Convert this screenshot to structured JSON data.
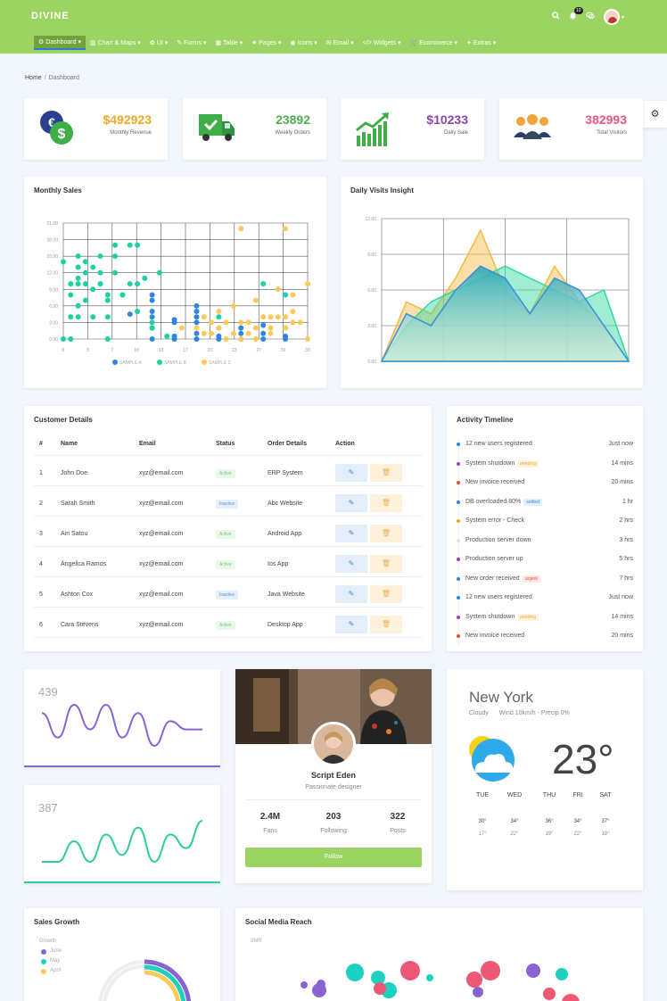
{
  "app": {
    "brand": "DIVINE",
    "notification_count": "10"
  },
  "nav": [
    {
      "label": "Dashboard",
      "icon": "gauge-icon",
      "active": true
    },
    {
      "label": "Chart & Maps",
      "icon": "bar-chart-icon"
    },
    {
      "label": "UI",
      "icon": "atom-icon"
    },
    {
      "label": "Forms",
      "icon": "edit-icon"
    },
    {
      "label": "Table",
      "icon": "table-icon"
    },
    {
      "label": "Pages",
      "icon": "star-icon"
    },
    {
      "label": "Icons",
      "icon": "icons-icon"
    },
    {
      "label": "Email",
      "icon": "envelope-icon"
    },
    {
      "label": "Widgets",
      "icon": "code-icon"
    },
    {
      "label": "Ecommerce",
      "icon": "cart-icon"
    },
    {
      "label": "Extras",
      "icon": "wrench-icon"
    }
  ],
  "breadcrumb": {
    "home": "Home",
    "separator": "/",
    "current": "Dashboard"
  },
  "stats": [
    {
      "value": "$492923",
      "label": "Monthly Revenue",
      "color": "#f5a623",
      "icon": "dollar-coins-icon"
    },
    {
      "value": "23892",
      "label": "Weekly Orders",
      "color": "#4caf50",
      "icon": "delivery-truck-icon"
    },
    {
      "value": "$10233",
      "label": "Daily Sale",
      "color": "#8e44ad",
      "icon": "growth-chart-icon"
    },
    {
      "value": "382993",
      "label": "Total Visitors",
      "color": "#e8577d",
      "icon": "people-group-icon"
    }
  ],
  "monthly_sales": {
    "title": "Monthly Sales"
  },
  "daily_visits": {
    "title": "Daily Visits Insight"
  },
  "chart_data": [
    {
      "type": "scatter",
      "title": "Monthly Sales",
      "xlim": [
        0,
        33
      ],
      "ylim": [
        0,
        21
      ],
      "x_ticks": [
        "0",
        "3",
        "7",
        "10",
        "13",
        "17",
        "20",
        "23",
        "27",
        "30",
        "33"
      ],
      "y_ticks": [
        "0.00",
        "3.00",
        "6.00",
        "9.00",
        "12.00",
        "15.00",
        "18.00",
        "21.00"
      ],
      "grid": true,
      "legend_position": "bottom",
      "series": [
        {
          "name": "SAMPLE A",
          "color": "#2e86de",
          "points": [
            [
              12,
              8
            ],
            [
              12,
              7
            ],
            [
              12,
              5
            ],
            [
              12,
              4
            ],
            [
              12,
              2
            ],
            [
              12,
              0
            ],
            [
              15,
              3.5
            ],
            [
              15,
              3
            ],
            [
              15,
              0.5
            ],
            [
              15,
              0
            ],
            [
              18,
              6
            ],
            [
              18,
              4
            ],
            [
              18,
              3
            ],
            [
              18,
              1
            ],
            [
              18,
              0
            ],
            [
              21,
              2
            ],
            [
              21,
              0.5
            ],
            [
              21,
              0
            ],
            [
              24,
              2
            ],
            [
              24,
              1
            ],
            [
              24,
              0
            ],
            [
              27,
              2.5
            ],
            [
              27,
              1
            ],
            [
              27,
              0
            ],
            [
              30,
              2
            ],
            [
              30,
              0.5
            ],
            [
              30,
              0
            ],
            [
              9,
              4.5
            ],
            [
              18,
              5
            ]
          ]
        },
        {
          "name": "SAMPLE B",
          "color": "#1dd1a1",
          "points": [
            [
              0,
              14
            ],
            [
              1,
              10
            ],
            [
              1,
              8
            ],
            [
              1,
              4
            ],
            [
              2,
              15
            ],
            [
              2,
              13
            ],
            [
              2,
              11
            ],
            [
              2,
              10
            ],
            [
              2,
              6
            ],
            [
              2,
              4
            ],
            [
              3,
              14
            ],
            [
              3,
              12
            ],
            [
              3,
              10
            ],
            [
              3,
              7
            ],
            [
              4,
              13
            ],
            [
              4,
              9
            ],
            [
              5,
              12
            ],
            [
              4,
              4
            ],
            [
              5,
              15
            ],
            [
              5,
              10
            ],
            [
              6,
              8
            ],
            [
              6,
              7
            ],
            [
              7,
              17
            ],
            [
              7,
              15
            ],
            [
              7,
              12
            ],
            [
              8,
              8
            ],
            [
              9,
              17
            ],
            [
              9,
              10
            ],
            [
              10,
              10
            ],
            [
              10,
              5
            ],
            [
              11,
              11
            ],
            [
              12,
              3
            ],
            [
              13,
              12
            ],
            [
              6,
              4
            ],
            [
              0,
              0
            ],
            [
              1,
              0
            ],
            [
              6,
              0
            ],
            [
              10,
              17
            ],
            [
              12,
              2
            ],
            [
              27,
              10
            ],
            [
              30,
              8
            ],
            [
              21,
              4
            ],
            [
              14,
              0.5
            ]
          ]
        },
        {
          "name": "SAMPLE C",
          "color": "#feca57",
          "points": [
            [
              24,
              20
            ],
            [
              30,
              20
            ],
            [
              33,
              10
            ],
            [
              31,
              8
            ],
            [
              29,
              9
            ],
            [
              26,
              7
            ],
            [
              23,
              6
            ],
            [
              21,
              5
            ],
            [
              19,
              4
            ],
            [
              20,
              3
            ],
            [
              22,
              3
            ],
            [
              24,
              3
            ],
            [
              25,
              3
            ],
            [
              26,
              2
            ],
            [
              27,
              4
            ],
            [
              28,
              4
            ],
            [
              29,
              4
            ],
            [
              30,
              4
            ],
            [
              31,
              3
            ],
            [
              32,
              3
            ],
            [
              16,
              2
            ],
            [
              18,
              2
            ],
            [
              19,
              1
            ],
            [
              20,
              1
            ],
            [
              22,
              0
            ],
            [
              24,
              0
            ],
            [
              26,
              0
            ],
            [
              28,
              1
            ],
            [
              30,
              2
            ],
            [
              33,
              0
            ],
            [
              31,
              5
            ],
            [
              28,
              2
            ],
            [
              25,
              1
            ],
            [
              21,
              2
            ],
            [
              23,
              1
            ]
          ]
        }
      ]
    },
    {
      "type": "area",
      "title": "Daily Visits Insight",
      "ylim": [
        0,
        12
      ],
      "y_ticks": [
        "0.00",
        "3.00",
        "6.00",
        "9.00",
        "12.00"
      ],
      "grid": true,
      "series": [
        {
          "color": "#f5b841",
          "values": [
            0,
            5,
            4,
            7,
            11,
            6,
            4,
            8,
            5,
            3,
            0
          ]
        },
        {
          "color": "#2ed8a0",
          "values": [
            0,
            3,
            5,
            6,
            7,
            8,
            7,
            6,
            5,
            6,
            0
          ]
        },
        {
          "color": "#3a8fd9",
          "values": [
            0,
            4,
            3,
            6,
            8,
            7,
            4,
            7,
            6,
            3,
            0
          ]
        }
      ]
    },
    {
      "type": "line",
      "series": [
        {
          "name": "439",
          "color": "#8a63d2",
          "values": [
            6,
            3,
            7,
            4,
            7,
            3,
            6,
            2,
            5,
            4,
            4
          ]
        }
      ]
    },
    {
      "type": "line",
      "series": [
        {
          "name": "387",
          "color": "#2ecc9a",
          "values": [
            2,
            2,
            5,
            2,
            6,
            3,
            7,
            2,
            6,
            4,
            8
          ]
        }
      ]
    },
    {
      "type": "pie",
      "title": "Sales Growth",
      "series": [
        {
          "name": "June",
          "color": "#8a63d2"
        },
        {
          "name": "May",
          "color": "#1dd1c1"
        },
        {
          "name": "April",
          "color": "#feca57"
        }
      ]
    },
    {
      "type": "scatter",
      "title": "Social Media Reach",
      "y_ticks": [
        "3MR"
      ]
    }
  ],
  "customers": {
    "title": "Customer Details",
    "headers": [
      "#",
      "Name",
      "Email",
      "Status",
      "Order Details",
      "Action"
    ],
    "rows": [
      {
        "id": "1",
        "name": "John Doe",
        "email": "xyz@email.com",
        "status": "Active",
        "order": "ERP System"
      },
      {
        "id": "2",
        "name": "Sarah Smith",
        "email": "xyz@email.com",
        "status": "Inactive",
        "order": "Abc Website"
      },
      {
        "id": "3",
        "name": "Airi Satou",
        "email": "xyz@email.com",
        "status": "Active",
        "order": "Android App"
      },
      {
        "id": "4",
        "name": "Angelica Ramos",
        "email": "xyz@email.com",
        "status": "Active",
        "order": "Ios App"
      },
      {
        "id": "5",
        "name": "Ashton Cox",
        "email": "xyz@email.com",
        "status": "Inactive",
        "order": "Java Website"
      },
      {
        "id": "6",
        "name": "Cara Stevens",
        "email": "xyz@email.com",
        "status": "Active",
        "order": "Desktop App"
      }
    ]
  },
  "timeline": {
    "title": "Activity Timeline",
    "items": [
      {
        "text": "12 new users registered",
        "badge": "",
        "time": "Just now",
        "color": "#2e86de"
      },
      {
        "text": "System shutdown",
        "badge": "pending",
        "badge_color": "#f5a623",
        "time": "14 mins",
        "color": "#8e44ad"
      },
      {
        "text": "New invoice received",
        "badge": "",
        "time": "20 mins",
        "color": "#e74c3c"
      },
      {
        "text": "DB overloaded 80%",
        "badge": "settled",
        "badge_color": "#3a86d6",
        "time": "1 hr",
        "color": "#2e86de"
      },
      {
        "text": "System error - Check",
        "badge": "",
        "time": "2 hrs",
        "color": "#f5a623"
      },
      {
        "text": "Production server down",
        "badge": "",
        "time": "3 hrs",
        "color": "#e0e0e0"
      },
      {
        "text": "Production server up",
        "badge": "",
        "time": "5 hrs",
        "color": "#8e44ad"
      },
      {
        "text": "New order received",
        "badge": "urgent",
        "badge_color": "#e74c3c",
        "time": "7 hrs",
        "color": "#2e86de"
      },
      {
        "text": "12 new users registered",
        "badge": "",
        "time": "Just now",
        "color": "#2e86de"
      },
      {
        "text": "System shutdown",
        "badge": "pending",
        "badge_color": "#f5a623",
        "time": "14 mins",
        "color": "#8e44ad"
      },
      {
        "text": "New invoice received",
        "badge": "",
        "time": "20 mins",
        "color": "#e74c3c"
      }
    ]
  },
  "spark1": {
    "value": "439"
  },
  "spark2": {
    "value": "387"
  },
  "profile": {
    "name": "Script Eden",
    "role": "Passionate designer",
    "stats": [
      {
        "value": "2.4M",
        "label": "Fans"
      },
      {
        "value": "203",
        "label": "Following"
      },
      {
        "value": "322",
        "label": "Posts"
      }
    ],
    "follow_label": "Follow"
  },
  "weather": {
    "city": "New York",
    "condition": "Cloudy",
    "details": "Wind 10km/h - Precip 0%",
    "temp": "23°",
    "icon": "sun-cloud-icon",
    "days": [
      {
        "day": "TUE",
        "hi": "30°",
        "lo": "17°"
      },
      {
        "day": "WED",
        "hi": "34°",
        "lo": "22°"
      },
      {
        "day": "THU",
        "hi": "36°",
        "lo": "19°"
      },
      {
        "day": "FRI",
        "hi": "34°",
        "lo": "22°"
      },
      {
        "day": "SAT",
        "hi": "37°",
        "lo": "19°"
      }
    ]
  },
  "sales_growth": {
    "title": "Sales Growth",
    "legend_title": "Growth"
  },
  "social": {
    "title": "Social Media Reach",
    "axis": "3MR"
  }
}
